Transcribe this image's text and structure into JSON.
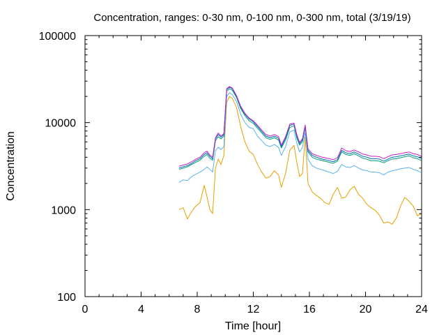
{
  "chart_data": {
    "type": "line",
    "title": "Concentration, ranges: 0-30 nm, 0-100 nm, 0-300 nm, total (3/19/19)",
    "xlabel": "Time [hour]",
    "ylabel": "Concentration",
    "xlim": [
      0,
      24
    ],
    "ylim": [
      100,
      100000
    ],
    "yscale": "log",
    "grid": false,
    "legend": "none",
    "x_ticks": [
      "0",
      "4",
      "8",
      "12",
      "16",
      "20",
      "24"
    ],
    "x_tick_values": [
      0,
      4,
      8,
      12,
      16,
      20,
      24
    ],
    "y_ticks": [
      "100",
      "1000",
      "10000",
      "100000"
    ],
    "y_tick_values": [
      100,
      1000,
      10000,
      100000
    ],
    "series": [
      {
        "color": "#e69f00",
        "x": [
          6.7,
          7.0,
          7.3,
          7.6,
          7.9,
          8.2,
          8.5,
          8.7,
          8.9,
          9.1,
          9.3,
          9.5,
          9.7,
          9.9,
          10.1,
          10.3,
          10.5,
          10.8,
          11.1,
          11.4,
          11.7,
          12.0,
          12.3,
          12.6,
          12.9,
          13.2,
          13.5,
          13.8,
          14.0,
          14.3,
          14.6,
          14.9,
          15.1,
          15.3,
          15.5,
          15.7,
          15.9,
          16.2,
          16.5,
          16.8,
          17.1,
          17.4,
          17.7,
          18.0,
          18.3,
          18.6,
          18.9,
          19.2,
          19.5,
          19.8,
          20.1,
          20.4,
          20.7,
          21.0,
          21.3,
          21.6,
          21.9,
          22.2,
          22.5,
          22.8,
          23.1,
          23.4,
          23.7,
          24.0
        ],
        "values": [
          1000,
          1050,
          780,
          950,
          1100,
          1200,
          1900,
          1400,
          1000,
          900,
          3000,
          3800,
          3300,
          4200,
          17000,
          20000,
          19000,
          15000,
          9000,
          6000,
          4700,
          4300,
          3300,
          2700,
          2300,
          2400,
          2800,
          2500,
          1800,
          2600,
          4800,
          5500,
          3500,
          2400,
          2600,
          6800,
          2000,
          1600,
          1450,
          1350,
          1200,
          1150,
          1500,
          1800,
          1350,
          1400,
          1700,
          1850,
          1500,
          1350,
          1150,
          1050,
          980,
          860,
          700,
          720,
          680,
          800,
          1100,
          1380,
          1250,
          1100,
          850,
          900
        ]
      },
      {
        "color": "#56b4e9",
        "x": [
          6.7,
          7.0,
          7.3,
          7.6,
          7.9,
          8.2,
          8.5,
          8.7,
          8.9,
          9.1,
          9.3,
          9.5,
          9.7,
          9.9,
          10.1,
          10.3,
          10.5,
          10.8,
          11.1,
          11.4,
          11.7,
          12.0,
          12.3,
          12.6,
          12.9,
          13.2,
          13.5,
          13.8,
          14.0,
          14.3,
          14.6,
          14.9,
          15.1,
          15.3,
          15.5,
          15.7,
          15.9,
          16.2,
          16.5,
          16.8,
          17.1,
          17.4,
          17.7,
          18.0,
          18.3,
          18.6,
          18.9,
          19.2,
          19.5,
          19.8,
          20.1,
          20.4,
          20.7,
          21.0,
          21.3,
          21.6,
          21.9,
          22.2,
          22.5,
          22.8,
          23.1,
          23.4,
          23.7,
          24.0
        ],
        "values": [
          2050,
          2200,
          2150,
          2400,
          2550,
          2700,
          2900,
          3100,
          2900,
          2700,
          4800,
          5200,
          4900,
          5300,
          20000,
          22000,
          21000,
          17500,
          12500,
          10000,
          8800,
          8500,
          7000,
          6200,
          5500,
          5300,
          5600,
          5200,
          4200,
          5300,
          7800,
          8200,
          5800,
          4600,
          5200,
          7600,
          3800,
          3200,
          3000,
          2900,
          2800,
          2700,
          2600,
          2750,
          3300,
          3100,
          3050,
          3200,
          3000,
          2850,
          2800,
          2700,
          2700,
          2650,
          2500,
          2700,
          2800,
          2850,
          2950,
          3000,
          3050,
          2900,
          2800,
          2650
        ]
      },
      {
        "color": "#009e73",
        "x": [
          6.7,
          7.0,
          7.3,
          7.6,
          7.9,
          8.2,
          8.5,
          8.7,
          8.9,
          9.1,
          9.3,
          9.5,
          9.7,
          9.9,
          10.1,
          10.3,
          10.5,
          10.8,
          11.1,
          11.4,
          11.7,
          12.0,
          12.3,
          12.6,
          12.9,
          13.2,
          13.5,
          13.8,
          14.0,
          14.3,
          14.6,
          14.9,
          15.1,
          15.3,
          15.5,
          15.7,
          15.9,
          16.2,
          16.5,
          16.8,
          17.1,
          17.4,
          17.7,
          18.0,
          18.3,
          18.6,
          18.9,
          19.2,
          19.5,
          19.8,
          20.1,
          20.4,
          20.7,
          21.0,
          21.3,
          21.6,
          21.9,
          22.2,
          22.5,
          22.8,
          23.1,
          23.4,
          23.7,
          24.0
        ],
        "values": [
          2900,
          3000,
          3100,
          3300,
          3500,
          3700,
          4100,
          4300,
          3900,
          3700,
          6200,
          6900,
          6500,
          7000,
          23000,
          24500,
          23500,
          19500,
          14500,
          12000,
          10500,
          9800,
          8600,
          7600,
          6700,
          6400,
          6700,
          6300,
          5100,
          6300,
          8800,
          9200,
          6700,
          5500,
          6000,
          8700,
          4600,
          4000,
          3800,
          3700,
          3600,
          3500,
          3400,
          3600,
          4600,
          4300,
          4200,
          4400,
          4150,
          3900,
          3800,
          3650,
          3650,
          3600,
          3450,
          3650,
          3800,
          3850,
          3950,
          4050,
          4150,
          3950,
          3850,
          3650
        ]
      },
      {
        "color": "#0072b2",
        "x": [
          6.7,
          7.0,
          7.3,
          7.6,
          7.9,
          8.2,
          8.5,
          8.7,
          8.9,
          9.1,
          9.3,
          9.5,
          9.7,
          9.9,
          10.1,
          10.3,
          10.5,
          10.8,
          11.1,
          11.4,
          11.7,
          12.0,
          12.3,
          12.6,
          12.9,
          13.2,
          13.5,
          13.8,
          14.0,
          14.3,
          14.6,
          14.9,
          15.1,
          15.3,
          15.5,
          15.7,
          15.9,
          16.2,
          16.5,
          16.8,
          17.1,
          17.4,
          17.7,
          18.0,
          18.3,
          18.6,
          18.9,
          19.2,
          19.5,
          19.8,
          20.1,
          20.4,
          20.7,
          21.0,
          21.3,
          21.6,
          21.9,
          22.2,
          22.5,
          22.8,
          23.1,
          23.4,
          23.7,
          24.0
        ],
        "values": [
          3000,
          3100,
          3200,
          3400,
          3650,
          3850,
          4300,
          4500,
          4100,
          3850,
          6500,
          7300,
          6800,
          7300,
          24000,
          25500,
          24500,
          20000,
          15000,
          12500,
          11000,
          10200,
          9000,
          7900,
          7000,
          6700,
          7000,
          6600,
          5300,
          6600,
          9300,
          9600,
          7000,
          5700,
          6300,
          9100,
          4800,
          4200,
          4000,
          3850,
          3750,
          3650,
          3550,
          3750,
          4800,
          4500,
          4400,
          4600,
          4350,
          4100,
          4000,
          3850,
          3850,
          3800,
          3600,
          3800,
          4000,
          4050,
          4150,
          4250,
          4350,
          4150,
          4050,
          3850
        ]
      },
      {
        "color": "#cc1fcc",
        "x": [
          6.7,
          7.0,
          7.3,
          7.6,
          7.9,
          8.2,
          8.5,
          8.7,
          8.9,
          9.1,
          9.3,
          9.5,
          9.7,
          9.9,
          10.1,
          10.3,
          10.5,
          10.8,
          11.1,
          11.4,
          11.7,
          12.0,
          12.3,
          12.6,
          12.9,
          13.2,
          13.5,
          13.8,
          14.0,
          14.3,
          14.6,
          14.9,
          15.1,
          15.3,
          15.5,
          15.7,
          15.9,
          16.2,
          16.5,
          16.8,
          17.1,
          17.4,
          17.7,
          18.0,
          18.3,
          18.6,
          18.9,
          19.2,
          19.5,
          19.8,
          20.1,
          20.4,
          20.7,
          21.0,
          21.3,
          21.6,
          21.9,
          22.2,
          22.5,
          22.8,
          23.1,
          23.4,
          23.7,
          24.0
        ],
        "values": [
          3150,
          3250,
          3350,
          3550,
          3800,
          4000,
          4500,
          4700,
          4250,
          4000,
          6700,
          7600,
          7000,
          7500,
          24500,
          26000,
          25000,
          20500,
          15400,
          12800,
          11300,
          10500,
          9300,
          8200,
          7300,
          7000,
          7300,
          6900,
          5500,
          6900,
          9600,
          9900,
          7300,
          5900,
          6500,
          9400,
          5000,
          4400,
          4200,
          4050,
          3950,
          3850,
          3750,
          3950,
          5100,
          4750,
          4650,
          4850,
          4600,
          4350,
          4250,
          4100,
          4100,
          4050,
          3850,
          4050,
          4250,
          4300,
          4400,
          4500,
          4600,
          4400,
          4300,
          4100
        ]
      }
    ]
  }
}
